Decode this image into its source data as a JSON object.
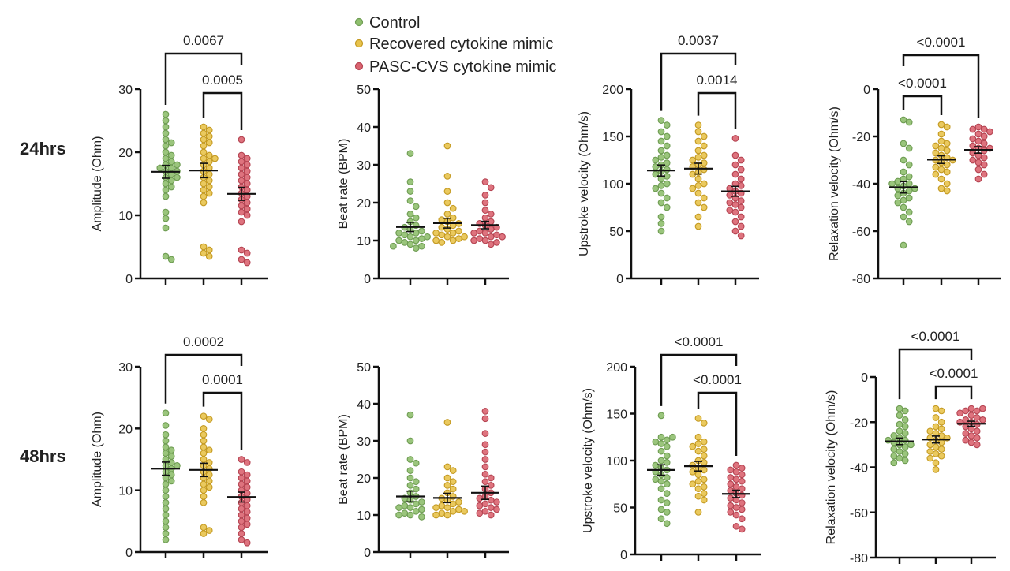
{
  "legend": {
    "items": [
      {
        "label": "Control",
        "fill": "#8fbf6e",
        "stroke": "#6e9c52"
      },
      {
        "label": "Recovered cytokine mimic",
        "fill": "#e8c34c",
        "stroke": "#c49a22"
      },
      {
        "label": "PASC-CVS cytokine mimic",
        "fill": "#da6470",
        "stroke": "#b54452"
      }
    ]
  },
  "row_labels": [
    "24hrs",
    "48hrs"
  ],
  "chart_data": [
    {
      "type": "scatter",
      "row": "24hrs",
      "ylabel": "Amplitude (Ohm)",
      "ylim": [
        0,
        30
      ],
      "yticks": [
        0,
        10,
        20,
        30
      ],
      "groups": [
        [
          26,
          25,
          24,
          23,
          22,
          21.5,
          21,
          20,
          19.5,
          19,
          18.5,
          18,
          18,
          17.5,
          17.5,
          17,
          17,
          16.5,
          16,
          16,
          15.5,
          15,
          14.5,
          14,
          13,
          10.5,
          9.5,
          8,
          3.5,
          3
        ],
        [
          24,
          23.5,
          23,
          22.5,
          22,
          21.5,
          21,
          20,
          19.5,
          19,
          19,
          18.5,
          18,
          17.5,
          17,
          16.5,
          16,
          15.5,
          15,
          14.5,
          14,
          13.5,
          13,
          12,
          5,
          4.5,
          4,
          3.5
        ],
        [
          22,
          19.5,
          19,
          18.5,
          18,
          17.5,
          17,
          16.5,
          16,
          15.5,
          15,
          14.5,
          14,
          13.5,
          13,
          12.5,
          12,
          11.5,
          11,
          10.5,
          10,
          9,
          4.5,
          4,
          3,
          2.5
        ]
      ],
      "means": [
        16.9,
        17.1,
        13.4
      ],
      "comparisons": [
        {
          "groups": [
            0,
            2
          ],
          "p": "0.0067"
        },
        {
          "groups": [
            1,
            2
          ],
          "p": "0.0005"
        }
      ]
    },
    {
      "type": "scatter",
      "row": "24hrs",
      "ylabel": "Beat rate (BPM)",
      "ylim": [
        0,
        50
      ],
      "yticks": [
        0,
        10,
        20,
        30,
        40,
        50
      ],
      "groups": [
        [
          33,
          25.5,
          23,
          20.5,
          19,
          17,
          16,
          15,
          14,
          13.5,
          13,
          12.5,
          12,
          12,
          11.5,
          11,
          11,
          10.5,
          10,
          10,
          9.5,
          9,
          8.5,
          8.5,
          8
        ],
        [
          35,
          27,
          23,
          20,
          18.5,
          17,
          16,
          15.5,
          15,
          14.5,
          14,
          13.5,
          13,
          12.5,
          12,
          12,
          11.5,
          11,
          11,
          10.5,
          10,
          10,
          9.5
        ],
        [
          25.5,
          24,
          22,
          20,
          18,
          17,
          16,
          15,
          14.5,
          14,
          13.5,
          13,
          12.5,
          12,
          12,
          11.5,
          11,
          11,
          10.5,
          10,
          10,
          9.5,
          9
        ]
      ],
      "means": [
        13.6,
        14.6,
        14.1
      ],
      "comparisons": []
    },
    {
      "type": "scatter",
      "row": "24hrs",
      "ylabel": "Upstroke velocity (Ohm/s)",
      "ylim": [
        0,
        200
      ],
      "yticks": [
        0,
        50,
        100,
        150,
        200
      ],
      "groups": [
        [
          167,
          162,
          155,
          150,
          145,
          140,
          135,
          130,
          128,
          125,
          122,
          120,
          118,
          115,
          113,
          110,
          108,
          105,
          100,
          98,
          95,
          90,
          85,
          80,
          75,
          65,
          58,
          50
        ],
        [
          162,
          155,
          150,
          145,
          140,
          135,
          130,
          128,
          125,
          122,
          120,
          118,
          115,
          112,
          110,
          105,
          100,
          98,
          95,
          90,
          85,
          80,
          75,
          65,
          55
        ],
        [
          148,
          130,
          125,
          120,
          115,
          110,
          105,
          100,
          98,
          95,
          92,
          90,
          88,
          85,
          82,
          80,
          78,
          75,
          72,
          70,
          65,
          60,
          55,
          50,
          45
        ]
      ],
      "means": [
        114,
        116,
        92
      ],
      "comparisons": [
        {
          "groups": [
            0,
            2
          ],
          "p": "0.0037"
        },
        {
          "groups": [
            1,
            2
          ],
          "p": "0.0014"
        }
      ]
    },
    {
      "type": "scatter",
      "row": "24hrs",
      "ylabel": "Relaxation velocity (Ohm/s)",
      "ylim": [
        -80,
        0
      ],
      "yticks": [
        -80,
        -60,
        -40,
        -20,
        0
      ],
      "groups": [
        [
          -13,
          -14,
          -23,
          -25,
          -30,
          -32,
          -35,
          -37,
          -38,
          -39,
          -40,
          -40,
          -41,
          -42,
          -42,
          -43,
          -44,
          -45,
          -46,
          -47,
          -48,
          -50,
          -52,
          -54,
          -56,
          -66
        ],
        [
          -15,
          -16,
          -19,
          -22,
          -23,
          -24,
          -25,
          -26,
          -27,
          -28,
          -29,
          -30,
          -30,
          -31,
          -32,
          -33,
          -34,
          -35,
          -36,
          -38,
          -40,
          -42,
          -43
        ],
        [
          -16,
          -17,
          -17,
          -18,
          -19,
          -20,
          -21,
          -22,
          -23,
          -24,
          -25,
          -25,
          -26,
          -27,
          -28,
          -29,
          -30,
          -31,
          -32,
          -34,
          -36,
          -38
        ]
      ],
      "means": [
        -41.5,
        -29.8,
        -25.7
      ],
      "comparisons": [
        {
          "groups": [
            0,
            2
          ],
          "p": "<0.0001"
        },
        {
          "groups": [
            0,
            1
          ],
          "p": "<0.0001"
        }
      ]
    },
    {
      "type": "scatter",
      "row": "48hrs",
      "ylabel": "Amplitude (Ohm)",
      "ylim": [
        0,
        30
      ],
      "yticks": [
        0,
        10,
        20,
        30
      ],
      "groups": [
        [
          22.5,
          20.5,
          19,
          18,
          17,
          16.5,
          16,
          15.5,
          15,
          14.5,
          14,
          14,
          13.5,
          13,
          12.5,
          12,
          11.5,
          11,
          10,
          9,
          8,
          7,
          6,
          5,
          4,
          3,
          2
        ],
        [
          22,
          21.5,
          20,
          19,
          18,
          17,
          16.5,
          16,
          15,
          14.5,
          14,
          13.5,
          13,
          12.5,
          12,
          11.5,
          11,
          10.5,
          10,
          9,
          8,
          4,
          3.5,
          3
        ],
        [
          15,
          14.5,
          13,
          12.5,
          12,
          11.5,
          11,
          10.5,
          10,
          9.5,
          9,
          8.5,
          8,
          7.5,
          7,
          6.5,
          6,
          5.5,
          5,
          4.5,
          4,
          3,
          2,
          1.5
        ]
      ],
      "means": [
        13.5,
        13.3,
        8.9
      ],
      "comparisons": [
        {
          "groups": [
            0,
            2
          ],
          "p": "0.0002"
        },
        {
          "groups": [
            1,
            2
          ],
          "p": "0.0001"
        }
      ]
    },
    {
      "type": "scatter",
      "row": "48hrs",
      "ylabel": "Beat rate (BPM)",
      "ylim": [
        0,
        50
      ],
      "yticks": [
        0,
        10,
        20,
        30,
        40,
        50
      ],
      "groups": [
        [
          37,
          30,
          25,
          24,
          22,
          20,
          19,
          18,
          17,
          16,
          15,
          14.5,
          14,
          13.5,
          13,
          12.5,
          12,
          12,
          11.5,
          11,
          10.5,
          10,
          10,
          9.5
        ],
        [
          35,
          23,
          22,
          20,
          19,
          18,
          17,
          16,
          15,
          14.5,
          14,
          13.5,
          13,
          12.5,
          12,
          12,
          11.5,
          11,
          11,
          10.5,
          10,
          10
        ],
        [
          38,
          36,
          32,
          29,
          27,
          25,
          23,
          21,
          20,
          19,
          18,
          17,
          16,
          15,
          14.5,
          14,
          13.5,
          13,
          12.5,
          12,
          11.5,
          11,
          10.5,
          10
        ]
      ],
      "means": [
        15,
        14.6,
        16
      ],
      "comparisons": []
    },
    {
      "type": "scatter",
      "row": "48hrs",
      "ylabel": "Upstroke velocity (Ohm/s)",
      "ylim": [
        0,
        200
      ],
      "yticks": [
        0,
        50,
        100,
        150,
        200
      ],
      "groups": [
        [
          148,
          125,
          125,
          122,
          120,
          118,
          115,
          110,
          105,
          100,
          98,
          95,
          92,
          90,
          88,
          85,
          82,
          80,
          78,
          75,
          70,
          65,
          58,
          55,
          48,
          45,
          38,
          33
        ],
        [
          145,
          140,
          125,
          120,
          118,
          115,
          112,
          110,
          105,
          100,
          98,
          95,
          92,
          90,
          88,
          85,
          80,
          78,
          75,
          72,
          70,
          65,
          62,
          58,
          45
        ],
        [
          95,
          92,
          90,
          88,
          85,
          82,
          80,
          78,
          75,
          72,
          70,
          68,
          65,
          63,
          60,
          58,
          55,
          52,
          50,
          48,
          45,
          42,
          38,
          30,
          27
        ]
      ],
      "means": [
        90,
        94,
        64.5
      ],
      "comparisons": [
        {
          "groups": [
            0,
            2
          ],
          "p": "<0.0001"
        },
        {
          "groups": [
            1,
            2
          ],
          "p": "<0.0001"
        }
      ]
    },
    {
      "type": "scatter",
      "row": "48hrs",
      "ylabel": "Relaxation velocity (Ohm/s)",
      "ylim": [
        -80,
        0
      ],
      "yticks": [
        -80,
        -60,
        -40,
        -20,
        0
      ],
      "groups": [
        [
          -14,
          -15,
          -17,
          -19,
          -21,
          -22,
          -24,
          -25,
          -26,
          -27,
          -28,
          -28,
          -29,
          -30,
          -30,
          -31,
          -32,
          -33,
          -34,
          -35,
          -36,
          -37,
          -38
        ],
        [
          -14,
          -15,
          -18,
          -20,
          -22,
          -23,
          -24,
          -25,
          -26,
          -27,
          -27,
          -28,
          -29,
          -30,
          -31,
          -32,
          -33,
          -34,
          -35,
          -36,
          -38,
          -41
        ],
        [
          -14,
          -14,
          -15,
          -15,
          -16,
          -17,
          -18,
          -19,
          -19,
          -20,
          -20,
          -21,
          -22,
          -23,
          -24,
          -25,
          -26,
          -27,
          -28,
          -29,
          -30
        ]
      ],
      "means": [
        -28.5,
        -27.7,
        -20.7
      ],
      "comparisons": [
        {
          "groups": [
            0,
            2
          ],
          "p": "<0.0001"
        },
        {
          "groups": [
            1,
            2
          ],
          "p": "<0.0001"
        }
      ]
    }
  ]
}
